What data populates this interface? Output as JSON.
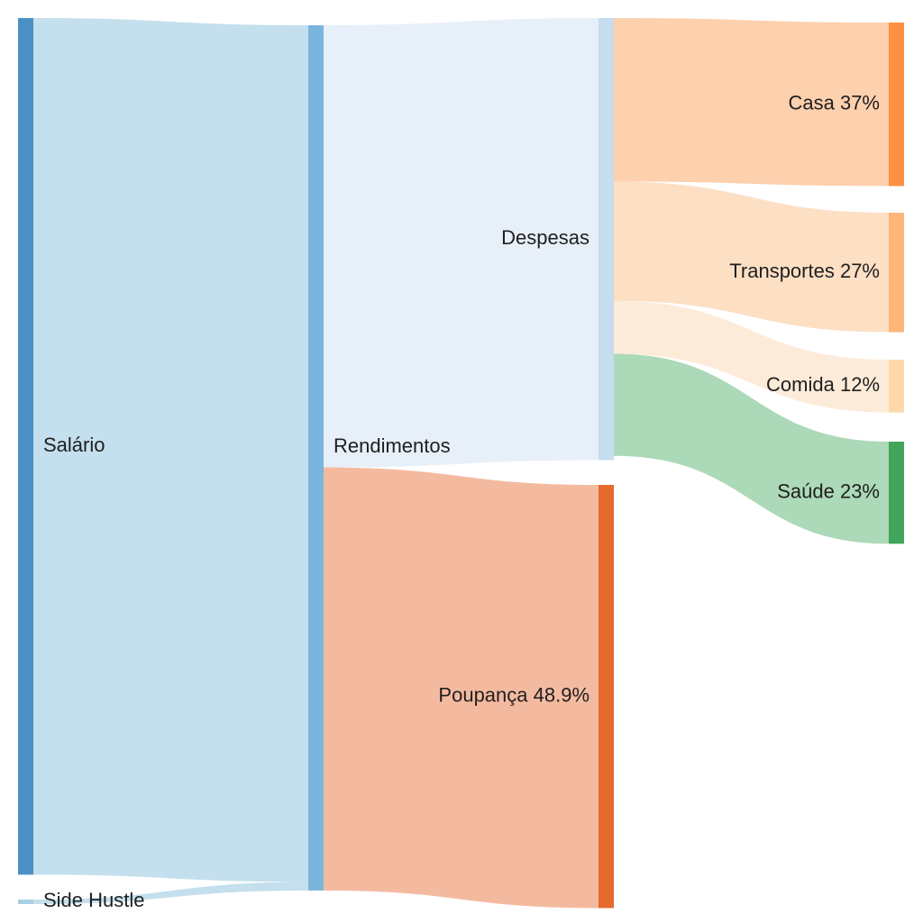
{
  "chart_data": {
    "type": "sankey",
    "title": "",
    "nodes": [
      {
        "id": "salario",
        "label": "Salário",
        "color": "#4a90c4"
      },
      {
        "id": "side",
        "label": "Side Hustle",
        "color": "#a9cfe6"
      },
      {
        "id": "rend",
        "label": "Rendimentos",
        "color": "#7bb4dc"
      },
      {
        "id": "desp",
        "label": "Despesas",
        "color": "#c6dcef"
      },
      {
        "id": "poup",
        "label": "Poupança 48.9%",
        "color": "#e6692d"
      },
      {
        "id": "casa",
        "label": "Casa 37%",
        "color": "#fd9143"
      },
      {
        "id": "trans",
        "label": "Transportes 27%",
        "color": "#fdb57a"
      },
      {
        "id": "comida",
        "label": "Comida 12%",
        "color": "#fed8a9"
      },
      {
        "id": "saude",
        "label": "Saúde 23%",
        "color": "#41a65a"
      }
    ],
    "links": [
      {
        "source": "salario",
        "target": "rend",
        "value": 99,
        "color": "#c4dfed"
      },
      {
        "source": "side",
        "target": "rend",
        "value": 1,
        "color": "#c4dfed"
      },
      {
        "source": "rend",
        "target": "desp",
        "value": 51.1,
        "color": "#e7eff8"
      },
      {
        "source": "rend",
        "target": "poup",
        "value": 48.9,
        "color": "#f4baa0"
      },
      {
        "source": "desp",
        "target": "casa",
        "value": 18.9,
        "color": "#fdd0ae"
      },
      {
        "source": "desp",
        "target": "trans",
        "value": 13.8,
        "color": "#fddfc4"
      },
      {
        "source": "desp",
        "target": "comida",
        "value": 6.1,
        "color": "#fdebd9"
      },
      {
        "source": "desp",
        "target": "saude",
        "value": 11.8,
        "color": "#acd9b8"
      }
    ]
  }
}
